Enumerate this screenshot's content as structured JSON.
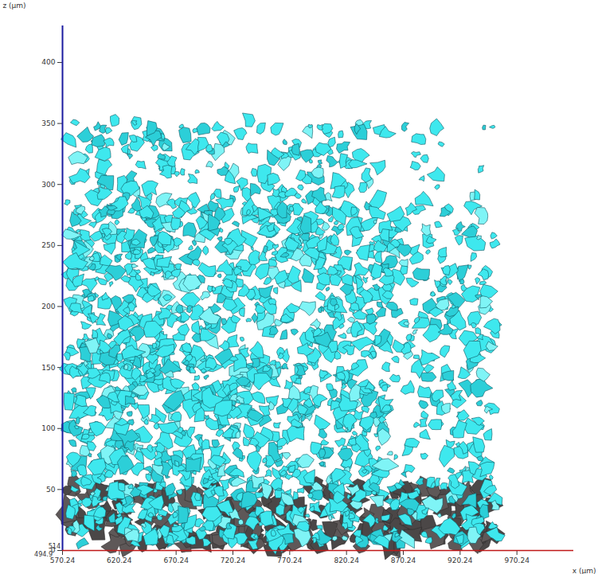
{
  "chart_data": {
    "type": "3d_render",
    "xlabel": "x (μm)",
    "ylabel": "z (μm)",
    "xlim": [
      570.24,
      1020.24
    ],
    "xticks": [
      570.24,
      620.24,
      670.24,
      720.24,
      770.24,
      820.24,
      870.24,
      920.24,
      970.24
    ],
    "ylim": [
      0,
      430
    ],
    "yticks": [
      0,
      50,
      100,
      150,
      200,
      250,
      300,
      350,
      400
    ],
    "annotations": [
      "514",
      "494.9"
    ],
    "color": "#3ee8ee"
  }
}
